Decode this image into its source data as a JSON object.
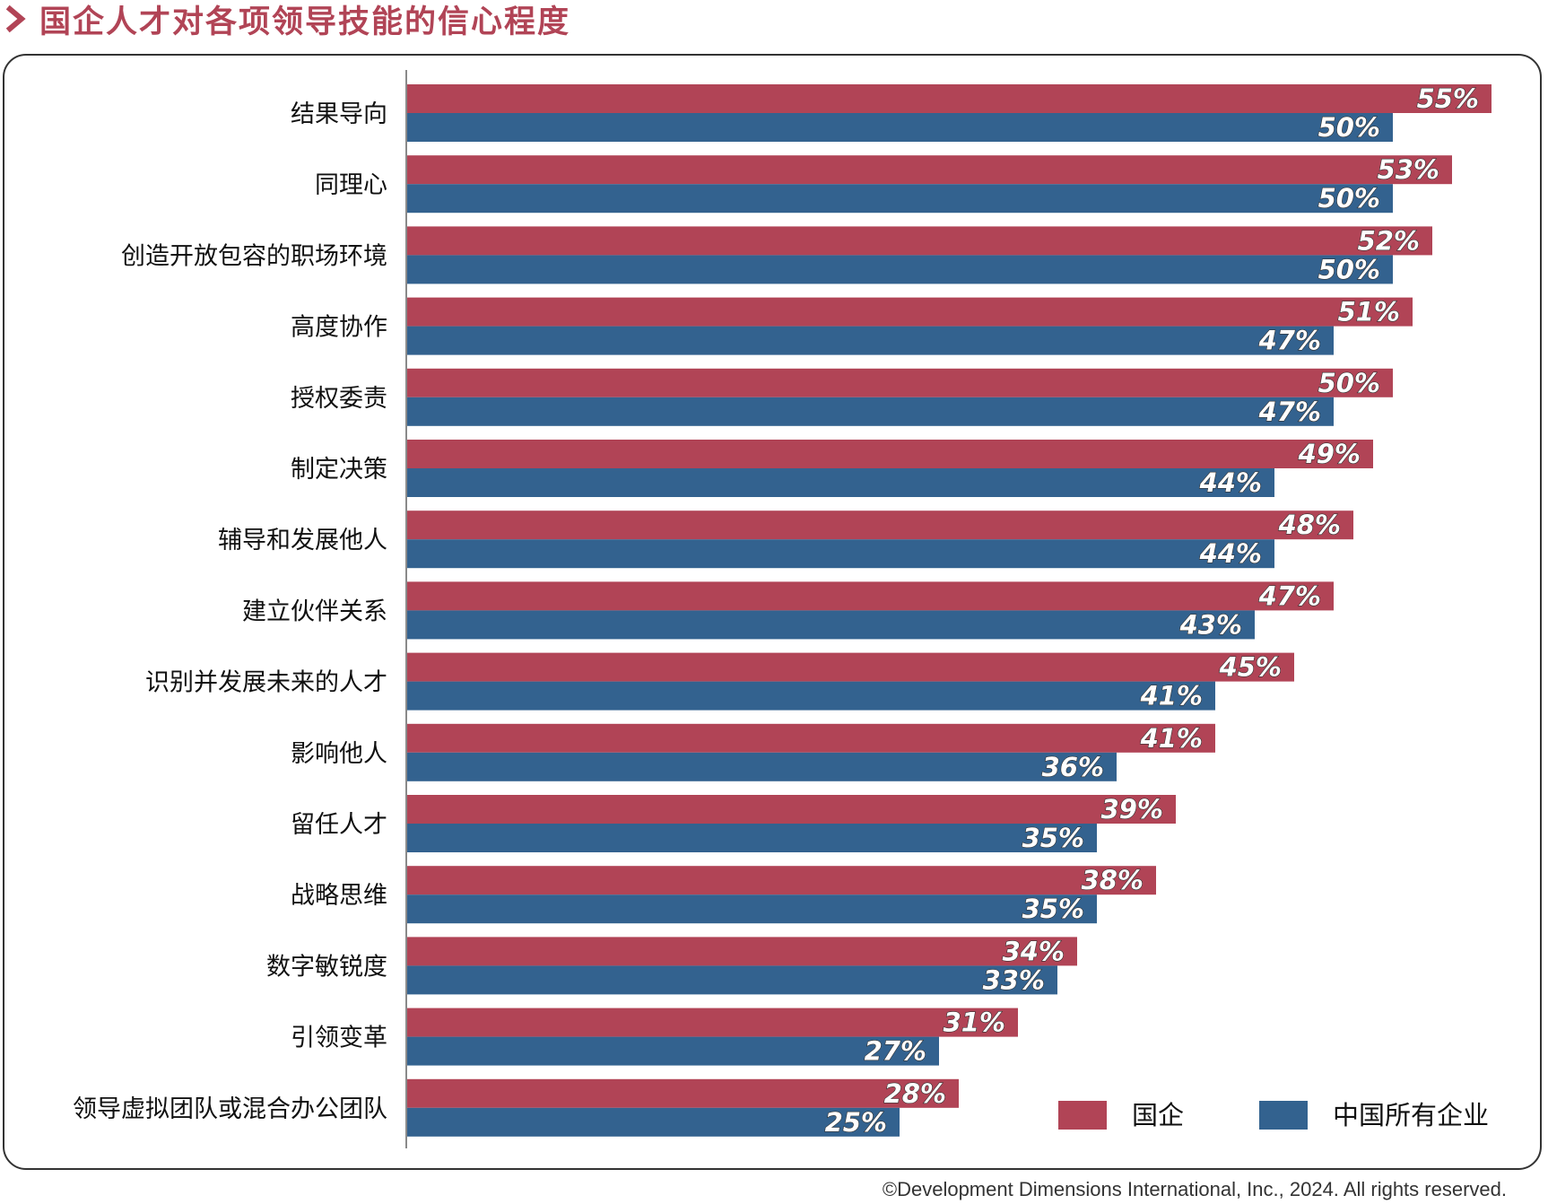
{
  "title": "国企人才对各项领导技能的信心程度",
  "copyright": "©Development Dimensions International, Inc., 2024. All rights reserved.",
  "colors": {
    "title": "#b14456",
    "series_soe": "#b14456",
    "series_all": "#33628f"
  },
  "icons": {
    "title_marker": "chevron-right-icon"
  },
  "chart_data": {
    "type": "bar",
    "orientation": "horizontal",
    "categories": [
      "结果导向",
      "同理心",
      "创造开放包容的职场环境",
      "高度协作",
      "授权委责",
      "制定决策",
      "辅导和发展他人",
      "建立伙伴关系",
      "识别并发展未来的人才",
      "影响他人",
      "留任人才",
      "战略思维",
      "数字敏锐度",
      "引领变革",
      "领导虚拟团队或混合办公团队"
    ],
    "series": [
      {
        "name": "国企",
        "color": "#b14456",
        "values": [
          55,
          53,
          52,
          51,
          50,
          49,
          48,
          47,
          45,
          41,
          39,
          38,
          34,
          31,
          28
        ],
        "labels": [
          "55%",
          "53%",
          "52%",
          "51%",
          "50%",
          "49%",
          "48%",
          "47%",
          "45%",
          "41%",
          "39%",
          "38%",
          "34%",
          "31%",
          "28%"
        ]
      },
      {
        "name": "中国所有企业",
        "color": "#33628f",
        "values": [
          50,
          50,
          50,
          47,
          47,
          44,
          44,
          43,
          41,
          36,
          35,
          35,
          33,
          27,
          25
        ],
        "labels": [
          "50%",
          "50%",
          "50%",
          "47%",
          "47%",
          "44%",
          "44%",
          "43%",
          "41%",
          "36%",
          "35%",
          "35%",
          "33%",
          "27%",
          "25%"
        ]
      }
    ],
    "xlim": [
      0,
      55
    ],
    "value_format": "percent",
    "grid": false,
    "legend_position": "bottom-right"
  }
}
